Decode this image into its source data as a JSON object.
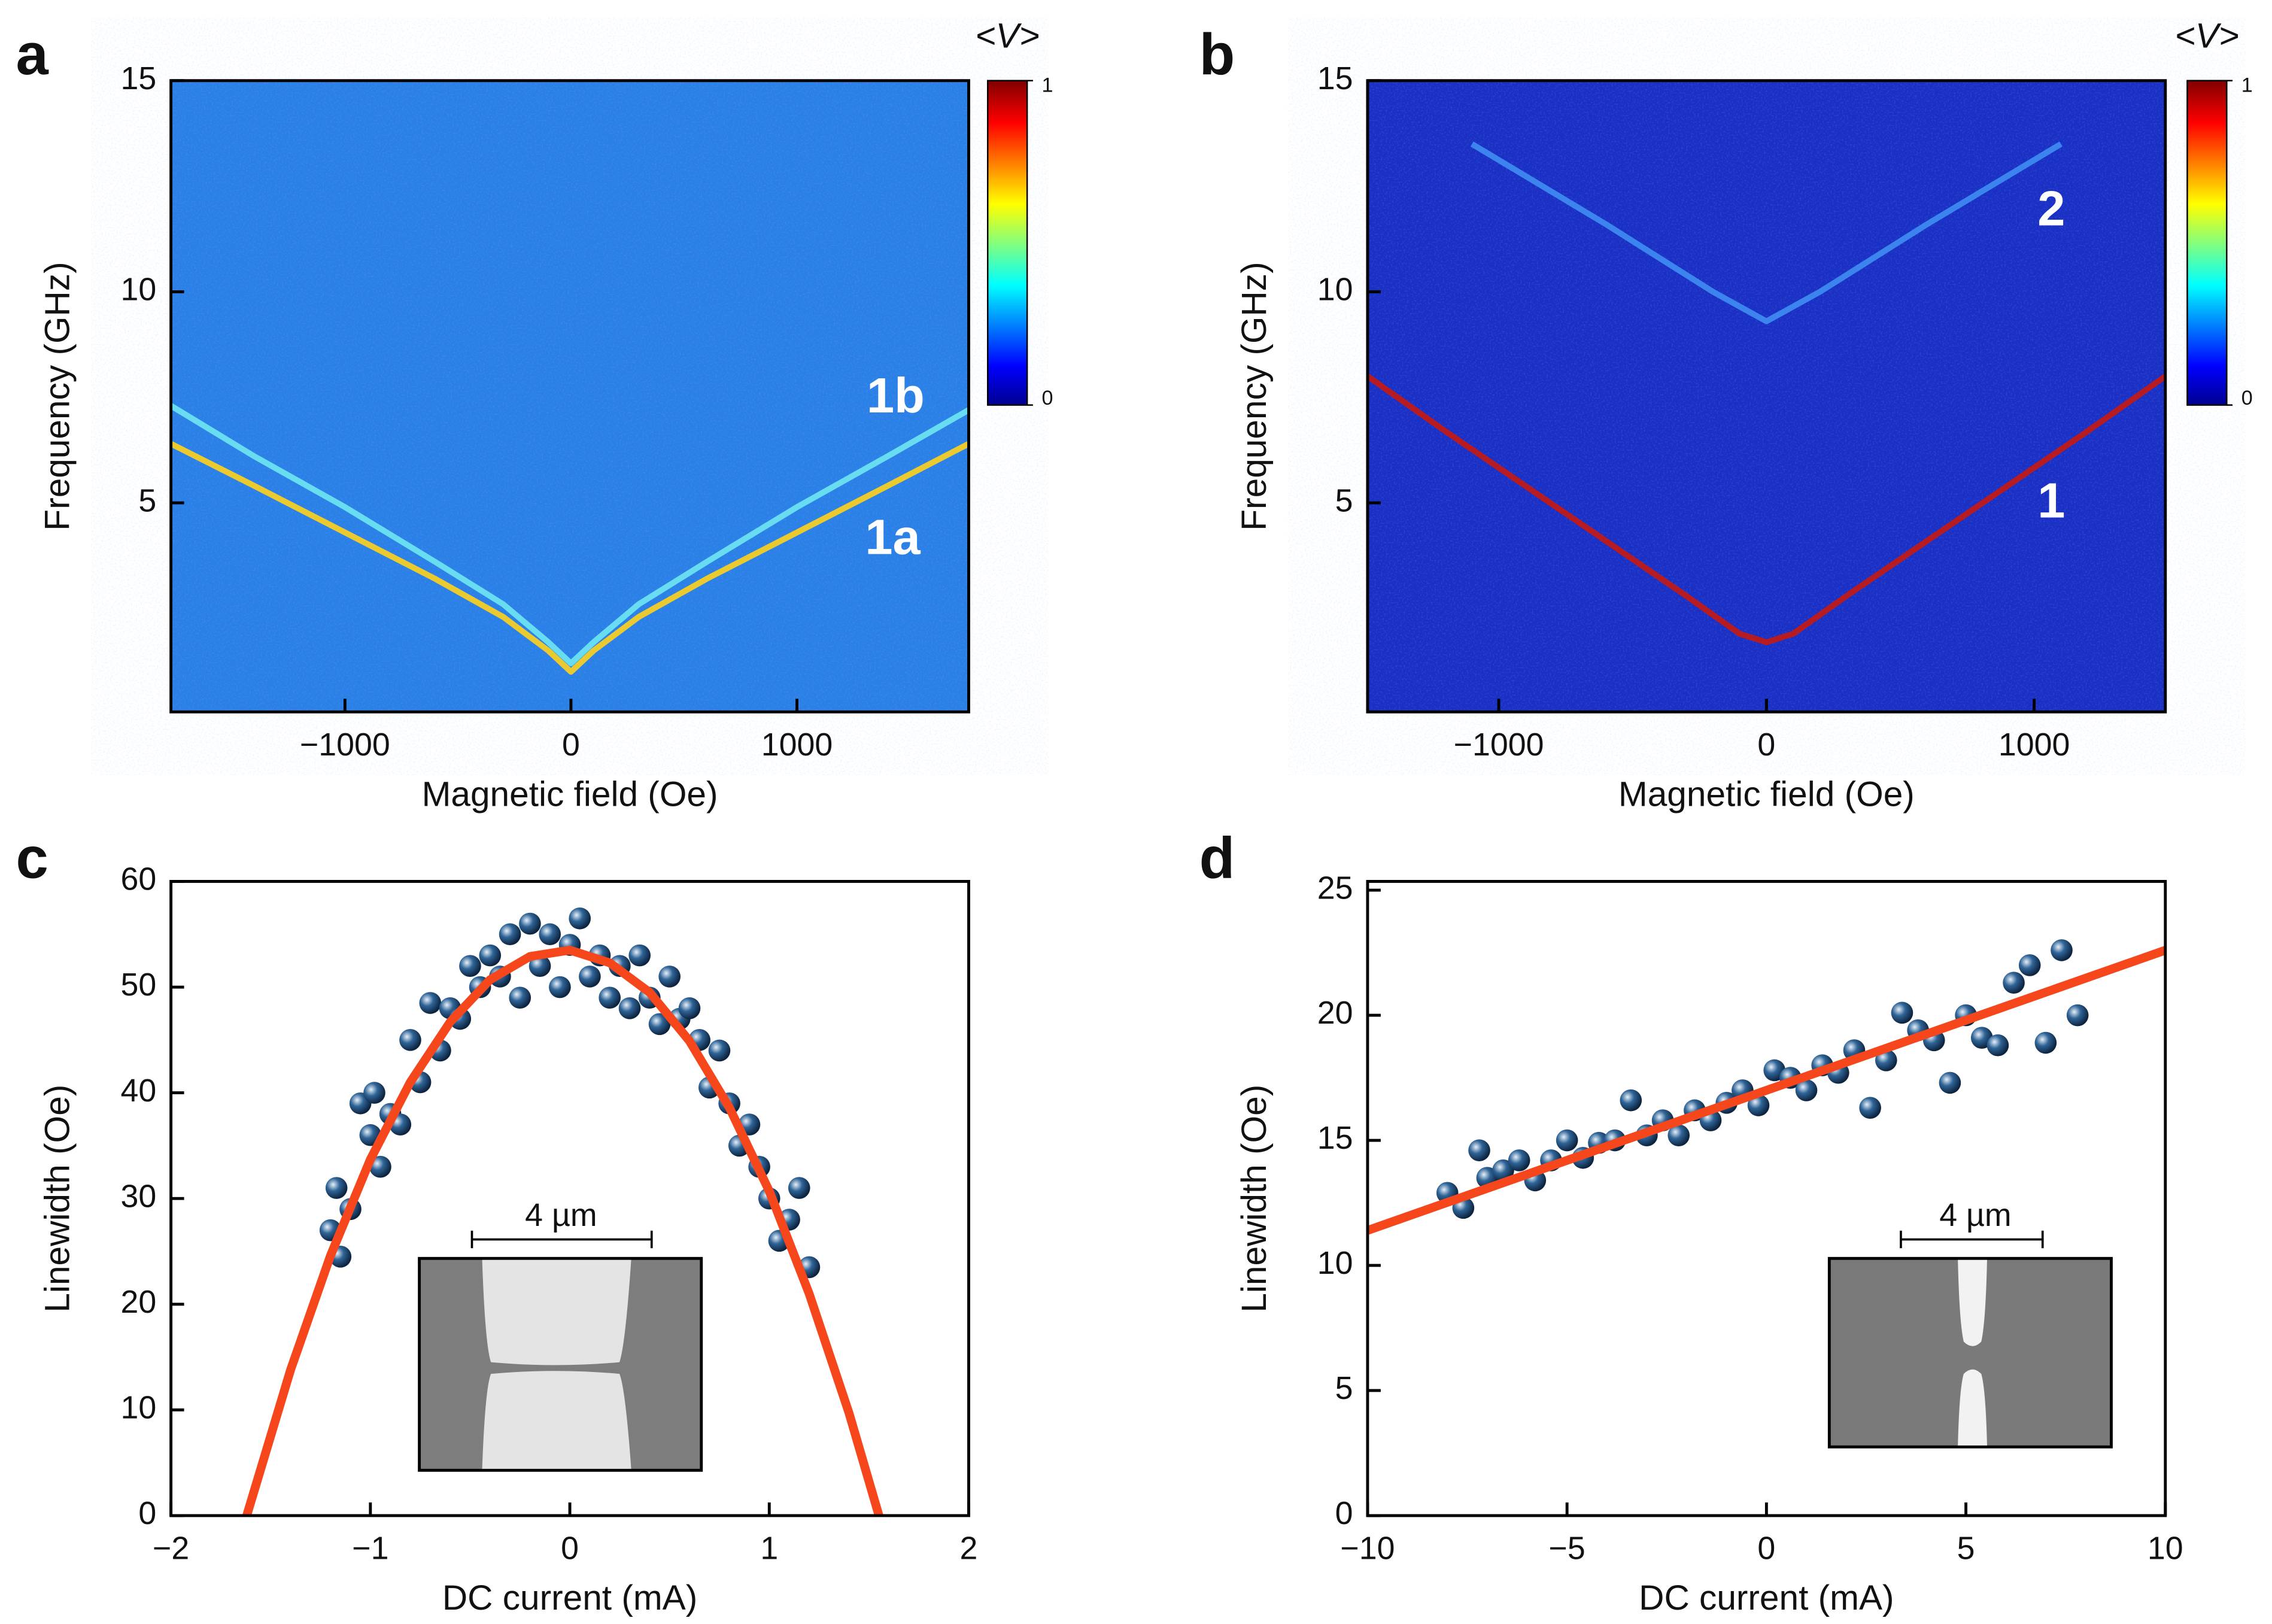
{
  "chart_data": [
    {
      "panel": "a",
      "type": "heatmap",
      "background": "#2a80e6",
      "xlabel": "Magnetic field (Oe)",
      "ylabel": "Frequency (GHz)",
      "xlim": [
        -1770,
        1760
      ],
      "ylim": [
        0.05,
        15
      ],
      "xticks": [
        {
          "value": -1000,
          "label": "−1000"
        },
        0,
        1000
      ],
      "yticks": [
        5,
        10,
        15
      ],
      "colorbar": {
        "label": "<V>",
        "lim": [
          0,
          1
        ],
        "ticks": [
          0,
          1
        ]
      },
      "series": [
        {
          "name": "1b",
          "color": "#6fe6f2",
          "x": [
            -1770,
            -1400,
            -1000,
            -600,
            -300,
            -100,
            0,
            100,
            300,
            600,
            1000,
            1400,
            1760
          ],
          "values": [
            7.3,
            6.1,
            4.9,
            3.6,
            2.6,
            1.7,
            1.2,
            1.7,
            2.6,
            3.6,
            4.9,
            6.1,
            7.2
          ]
        },
        {
          "name": "1a",
          "color": "#ffd21a",
          "x": [
            -1770,
            -1400,
            -1000,
            -600,
            -300,
            -100,
            0,
            100,
            300,
            600,
            1000,
            1400,
            1760
          ],
          "values": [
            6.4,
            5.4,
            4.3,
            3.2,
            2.3,
            1.5,
            1.0,
            1.5,
            2.3,
            3.2,
            4.3,
            5.4,
            6.4
          ]
        }
      ]
    },
    {
      "panel": "b",
      "type": "heatmap",
      "background": "#1a2fc4",
      "xlabel": "Magnetic field (Oe)",
      "ylabel": "Frequency (GHz)",
      "xlim": [
        -1490,
        1490
      ],
      "ylim": [
        0.05,
        15
      ],
      "xticks": [
        {
          "value": -1000,
          "label": "−1000"
        },
        0,
        1000
      ],
      "yticks": [
        5,
        10,
        15
      ],
      "colorbar": {
        "label": "<V>",
        "lim": [
          0,
          1
        ],
        "ticks": [
          0,
          1
        ]
      },
      "series": [
        {
          "name": "1",
          "color": "#c8190f",
          "x": [
            -1490,
            -1200,
            -900,
            -600,
            -300,
            -100,
            0,
            100,
            300,
            600,
            900,
            1200,
            1490
          ],
          "values": [
            8.0,
            6.7,
            5.4,
            4.1,
            2.8,
            1.9,
            1.7,
            1.9,
            2.8,
            4.1,
            5.4,
            6.7,
            8.0
          ]
        },
        {
          "name": "2",
          "color": "#3f8ef2",
          "x": [
            -1100,
            -600,
            -200,
            0,
            200,
            600,
            1100
          ],
          "values": [
            13.5,
            11.6,
            10.0,
            9.3,
            10.0,
            11.6,
            13.5
          ]
        }
      ]
    },
    {
      "panel": "c",
      "type": "scatter",
      "xlabel": "DC current (mA)",
      "ylabel": "Linewidth (Oe)",
      "xlim": [
        -2,
        2
      ],
      "ylim": [
        0,
        60
      ],
      "xticks": [
        {
          "value": -2,
          "label": "−2"
        },
        {
          "value": -1,
          "label": "−1"
        },
        0,
        1,
        2
      ],
      "yticks": [
        0,
        10,
        20,
        30,
        40,
        50,
        60
      ],
      "scale_bar": "4 µm",
      "points": {
        "color": "#2f6497",
        "x": [
          -1.2,
          -1.17,
          -1.15,
          -1.1,
          -1.05,
          -1.0,
          -0.98,
          -0.95,
          -0.9,
          -0.85,
          -0.8,
          -0.75,
          -0.7,
          -0.65,
          -0.6,
          -0.55,
          -0.5,
          -0.45,
          -0.4,
          -0.35,
          -0.3,
          -0.25,
          -0.2,
          -0.15,
          -0.1,
          -0.05,
          0,
          0.05,
          0.1,
          0.15,
          0.2,
          0.25,
          0.3,
          0.35,
          0.4,
          0.45,
          0.5,
          0.55,
          0.6,
          0.65,
          0.7,
          0.75,
          0.8,
          0.85,
          0.9,
          0.95,
          1.0,
          1.05,
          1.1,
          1.15,
          1.2
        ],
        "values": [
          27,
          31,
          24.5,
          29,
          39,
          36,
          40,
          33,
          38,
          37,
          45,
          41,
          48.5,
          44,
          48,
          47,
          52,
          50,
          53,
          51,
          55,
          49,
          56,
          52,
          55,
          50,
          54,
          56.5,
          51,
          53,
          49,
          52,
          48,
          53,
          49,
          46.5,
          51,
          47,
          48,
          45,
          40.5,
          44,
          39,
          35,
          37,
          33,
          30,
          26,
          28,
          31,
          23.5
        ]
      },
      "fit": {
        "color": "#f5461c",
        "x": [
          -1.62,
          -1.4,
          -1.2,
          -1.0,
          -0.8,
          -0.6,
          -0.4,
          -0.2,
          0,
          0.2,
          0.4,
          0.6,
          0.8,
          1.0,
          1.2,
          1.4,
          1.55
        ],
        "values": [
          0,
          13.8,
          24.6,
          33.7,
          41.0,
          46.7,
          50.7,
          52.9,
          53.5,
          52.3,
          49.5,
          44.9,
          38.6,
          30.7,
          21.0,
          9.7,
          0
        ]
      }
    },
    {
      "panel": "d",
      "type": "scatter",
      "xlabel": "DC current (mA)",
      "ylabel": "Linewidth (Oe)",
      "xlim": [
        -10,
        10
      ],
      "ylim": [
        0,
        25.35
      ],
      "xticks": [
        {
          "value": -10,
          "label": "−10"
        },
        {
          "value": -5,
          "label": "−5"
        },
        0,
        5,
        10
      ],
      "yticks": [
        0,
        5,
        10,
        15,
        20,
        25
      ],
      "scale_bar": "4 µm",
      "points": {
        "color": "#2f6497",
        "x": [
          -8,
          -7.6,
          -7.2,
          -7,
          -6.6,
          -6.2,
          -5.8,
          -5.4,
          -5,
          -4.6,
          -4.2,
          -3.8,
          -3.4,
          -3,
          -2.6,
          -2.2,
          -1.8,
          -1.4,
          -1,
          -0.6,
          -0.2,
          0.2,
          0.6,
          1,
          1.4,
          1.8,
          2.2,
          2.6,
          3,
          3.4,
          3.8,
          4.2,
          4.6,
          5,
          5.4,
          5.8,
          6.2,
          6.6,
          7,
          7.4,
          7.8
        ],
        "values": [
          12.9,
          12.3,
          14.6,
          13.5,
          13.8,
          14.2,
          13.4,
          14.2,
          15.0,
          14.3,
          14.9,
          15.0,
          16.6,
          15.2,
          15.8,
          15.2,
          16.2,
          15.8,
          16.5,
          17.0,
          16.4,
          17.8,
          17.5,
          17.0,
          18.0,
          17.7,
          18.6,
          16.3,
          18.2,
          20.1,
          19.4,
          19.0,
          17.3,
          20.0,
          19.1,
          18.8,
          21.3,
          22.0,
          18.9,
          22.6,
          20.0
        ]
      },
      "fit": {
        "color": "#f5461c",
        "x": [
          -10,
          10
        ],
        "values": [
          11.4,
          22.6
        ]
      }
    }
  ]
}
